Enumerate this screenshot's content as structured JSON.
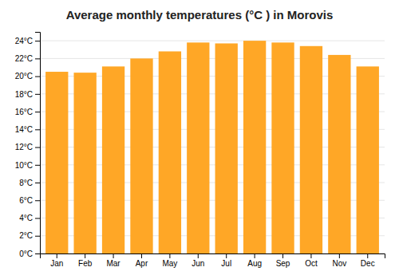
{
  "chart_data": {
    "type": "bar",
    "title": "Average monthly temperatures (°C ) in Morovis",
    "categories": [
      "Jan",
      "Feb",
      "Mar",
      "Apr",
      "May",
      "Jun",
      "Jul",
      "Aug",
      "Sep",
      "Oct",
      "Nov",
      "Dec"
    ],
    "values": [
      20.5,
      20.4,
      21.1,
      22.0,
      22.8,
      23.8,
      23.7,
      24.0,
      23.8,
      23.4,
      22.4,
      21.1
    ],
    "color": "#FFA726",
    "ylim": [
      0,
      25
    ],
    "yticks": [
      {
        "value": 0,
        "label": "0°C"
      },
      {
        "value": 2,
        "label": "2°C"
      },
      {
        "value": 4,
        "label": "4°C"
      },
      {
        "value": 6,
        "label": "6°C"
      },
      {
        "value": 8,
        "label": "8°C"
      },
      {
        "value": 10,
        "label": "10°C"
      },
      {
        "value": 12,
        "label": "12°C"
      },
      {
        "value": 14,
        "label": "14°C"
      },
      {
        "value": 16,
        "label": "16°C"
      },
      {
        "value": 18,
        "label": "18°C"
      },
      {
        "value": 20,
        "label": "20°C"
      },
      {
        "value": 22,
        "label": "22°C"
      },
      {
        "value": 24,
        "label": "24°C"
      }
    ],
    "grid": true
  }
}
